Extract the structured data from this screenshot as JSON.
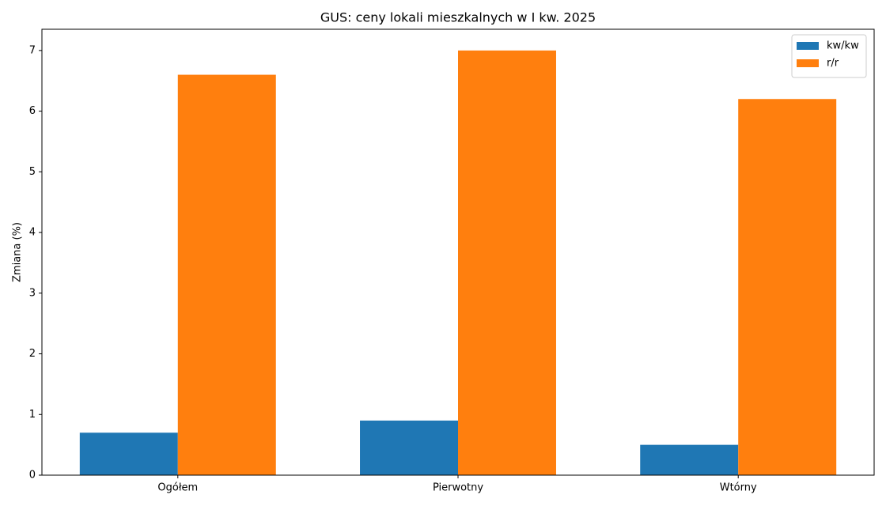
{
  "chart_data": {
    "type": "bar",
    "title": "GUS: ceny lokali mieszkalnych w I kw. 2025",
    "y_label": "Zmiana (%)",
    "categories": [
      "Ogółem",
      "Pierwotny",
      "Wtórny"
    ],
    "series": [
      {
        "name": "kw/kw",
        "color": "#1f77b4",
        "values": [
          0.7,
          0.9,
          0.5
        ]
      },
      {
        "name": "r/r",
        "color": "#ff7f0e",
        "values": [
          6.6,
          7.0,
          6.2
        ]
      }
    ],
    "ylim": [
      0,
      7.35
    ],
    "yticks": [
      0,
      1,
      2,
      3,
      4,
      5,
      6,
      7
    ],
    "grid": false,
    "legend": "upper right"
  }
}
